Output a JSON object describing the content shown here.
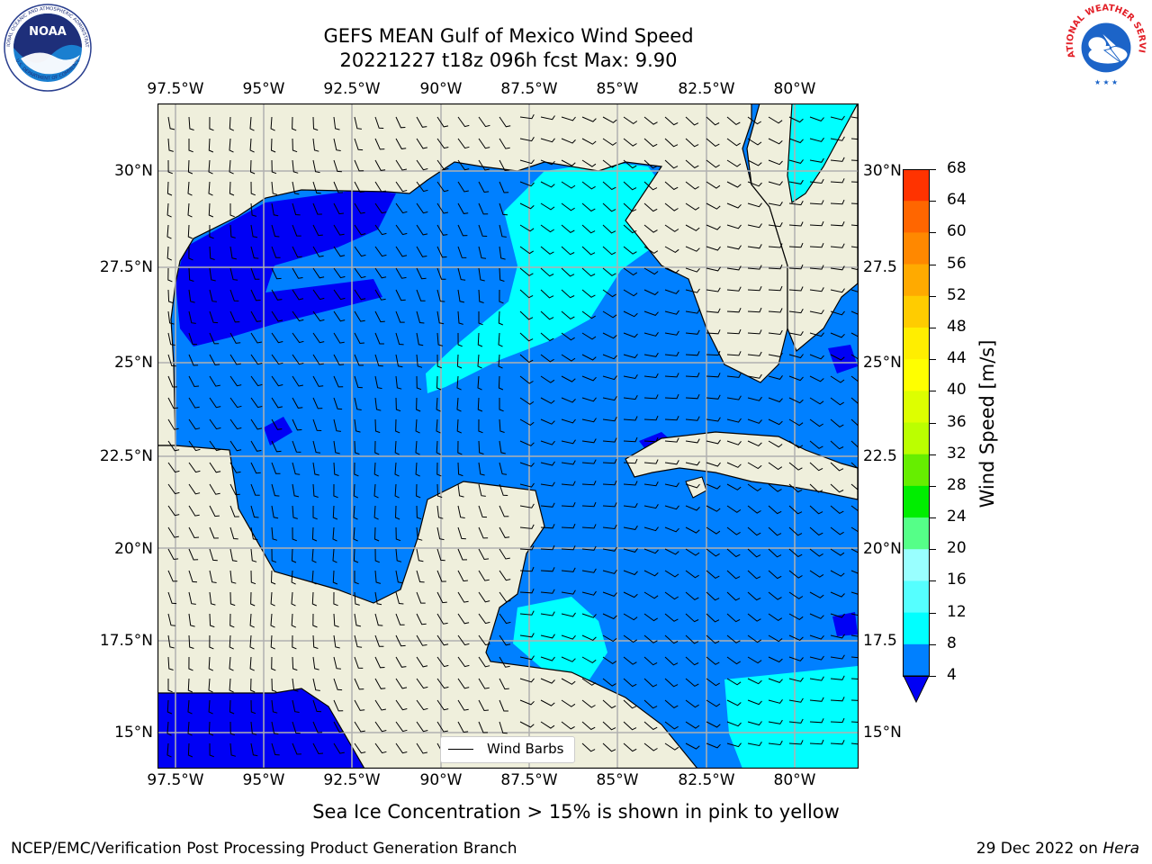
{
  "header": {
    "title_line1": "GEFS MEAN Gulf of Mexico Wind Speed",
    "title_line2": "20221227 t18z 096h fcst   Max: 9.90"
  },
  "logos": {
    "left": {
      "text_outer": "NATIONAL OCEANIC AND ATMOSPHERIC ADMINISTRATION",
      "text_bottom": "U.S. DEPARTMENT OF COMMERCE",
      "center": "NOAA"
    },
    "right": {
      "text_outer": "NATIONAL WEATHER SERVICE"
    }
  },
  "map": {
    "lon_ticks": [
      "97.5°W",
      "95°W",
      "92.5°W",
      "90°W",
      "87.5°W",
      "85°W",
      "82.5°W",
      "80°W"
    ],
    "lat_ticks_left": [
      "30°N",
      "27.5°N",
      "25°N",
      "22.5°N",
      "20°N",
      "17.5°N",
      "15°N"
    ],
    "lat_ticks_right": [
      "30°N",
      "27.5",
      "25°N",
      "22.5",
      "20°N",
      "17.5",
      "15°N"
    ],
    "legend_label": "Wind Barbs",
    "colors": {
      "land": "#efefdc",
      "level_4": "#0000f5",
      "level_4_8": "#0080ff",
      "level_8_12": "#00ffff",
      "coast": "#000000",
      "grid": "#b0b0b0"
    }
  },
  "colorbar": {
    "title": "Wind Speed [m/s]",
    "labels": [
      "68",
      "64",
      "60",
      "56",
      "52",
      "48",
      "44",
      "40",
      "36",
      "32",
      "28",
      "24",
      "20",
      "16",
      "12",
      "8",
      "4"
    ],
    "colors": [
      "#ff0000",
      "#ff3300",
      "#ff6600",
      "#ff8800",
      "#ffaa00",
      "#ffcc00",
      "#ffee00",
      "#ffff00",
      "#ddff00",
      "#bbff00",
      "#66ee00",
      "#00ee00",
      "#55ff88",
      "#99ffff",
      "#55ffff",
      "#00ffff",
      "#0080ff"
    ],
    "extend_color": "#0000f5"
  },
  "note": "Sea Ice Concentration > 15% is shown in pink to yellow",
  "footer": {
    "left": "NCEP/EMC/Verification Post Processing Product Generation Branch",
    "right_prefix": "29 Dec 2022 on ",
    "right_italic": "Hera"
  }
}
